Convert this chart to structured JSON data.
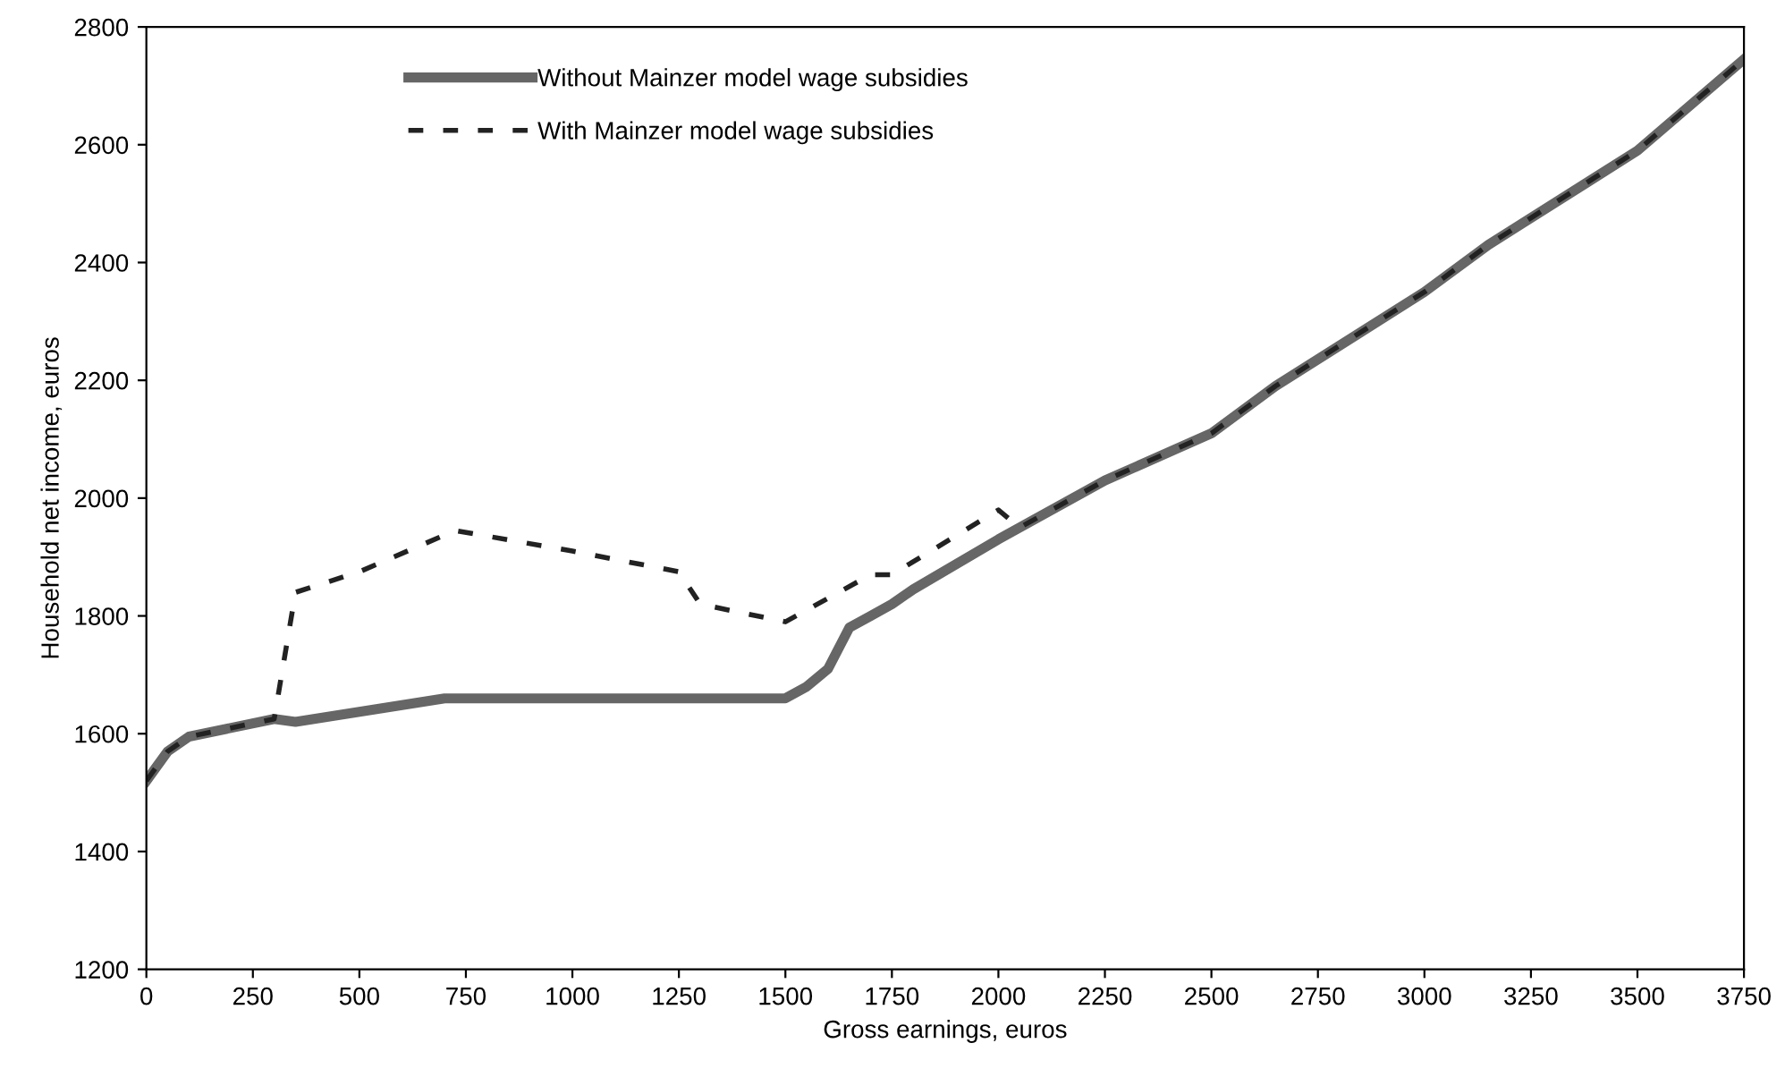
{
  "chart_data": {
    "type": "line",
    "xlabel": "Gross earnings, euros",
    "ylabel": "Household net income, euros",
    "xlim": [
      0,
      3750
    ],
    "xticks": [
      0,
      250,
      500,
      750,
      1000,
      1250,
      1500,
      1750,
      2000,
      2250,
      2500,
      2750,
      3000,
      3250,
      3500,
      3750
    ],
    "ylim": [
      1200,
      2800
    ],
    "yticks": [
      1200,
      1400,
      1600,
      1800,
      2000,
      2200,
      2400,
      2600,
      2800
    ],
    "grid": false,
    "legend": "top left",
    "series": [
      {
        "name": "Without Mainzer model wage subsidies",
        "color": "#666666",
        "line_style": "solid",
        "x": [
          0,
          50,
          100,
          300,
          350,
          700,
          1500,
          1550,
          1600,
          1650,
          1700,
          1750,
          1800,
          2000,
          2250,
          2500,
          2650,
          3000,
          3150,
          3500,
          3750
        ],
        "values": [
          1520,
          1570,
          1595,
          1625,
          1620,
          1660,
          1660,
          1680,
          1710,
          1780,
          1800,
          1820,
          1845,
          1930,
          2030,
          2110,
          2190,
          2350,
          2430,
          2590,
          2745
        ]
      },
      {
        "name": "With Mainzer model wage subsidies",
        "color": "#222222",
        "line_style": "dashed",
        "x": [
          0,
          50,
          100,
          300,
          350,
          500,
          725,
          1000,
          1250,
          1300,
          1500,
          1700,
          1750,
          2000,
          2025,
          2050,
          2250,
          2500,
          2650,
          3000,
          3150,
          3500,
          3750
        ],
        "values": [
          1520,
          1570,
          1595,
          1625,
          1840,
          1875,
          1945,
          1910,
          1875,
          1820,
          1790,
          1870,
          1870,
          1980,
          1965,
          1950,
          2030,
          2110,
          2190,
          2350,
          2430,
          2590,
          2745
        ]
      }
    ]
  }
}
